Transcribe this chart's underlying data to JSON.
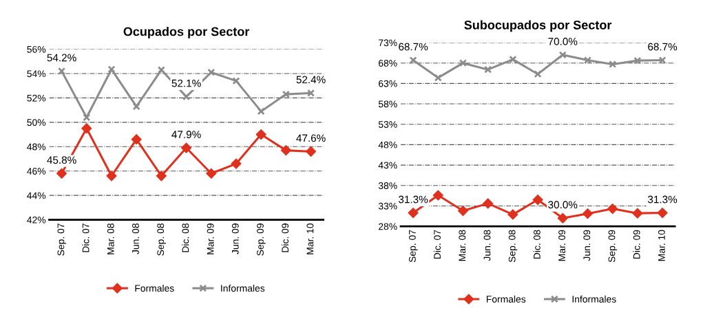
{
  "chart_data": [
    {
      "type": "line",
      "title": "Ocupados por Sector",
      "categories": [
        "Sep. 07",
        "Dic. 07",
        "Mar. 08",
        "Jun. 08",
        "Sep. 08",
        "Dic. 08",
        "Mar. 09",
        "Jun. 09",
        "Sep. 09",
        "Dic. 09",
        "Mar. 10"
      ],
      "series": [
        {
          "name": "Formales",
          "color": "#e0301e",
          "marker": "diamond",
          "values": [
            45.8,
            49.5,
            45.6,
            48.6,
            45.6,
            47.9,
            45.8,
            46.6,
            49.0,
            47.7,
            47.6
          ],
          "value_labels": [
            "45.8%",
            null,
            null,
            null,
            null,
            "47.9%",
            null,
            null,
            null,
            null,
            "47.6%"
          ]
        },
        {
          "name": "Informales",
          "color": "#8c8c8c",
          "marker": "cross",
          "values": [
            54.2,
            50.4,
            54.35,
            51.3,
            54.3,
            52.1,
            54.1,
            53.4,
            50.9,
            52.3,
            52.4
          ],
          "value_labels": [
            "54.2%",
            null,
            null,
            null,
            null,
            "52.1%",
            null,
            null,
            null,
            null,
            "52.4%"
          ]
        }
      ],
      "ylim": [
        42,
        56
      ],
      "yticks": [
        {
          "value": 42,
          "label": "42%"
        },
        {
          "value": 44,
          "label": "44%"
        },
        {
          "value": 46,
          "label": "46%"
        },
        {
          "value": 48,
          "label": "48%"
        },
        {
          "value": 50,
          "label": "50%"
        },
        {
          "value": 52,
          "label": "52%"
        },
        {
          "value": 54,
          "label": "54%"
        },
        {
          "value": 56,
          "label": "56%"
        }
      ],
      "grid": "y",
      "legend": "bottom"
    },
    {
      "type": "line",
      "title": "Subocupados por Sector",
      "categories": [
        "Sep. 07",
        "Dic. 07",
        "Mar. 08",
        "Jun. 08",
        "Sep. 08",
        "Dic. 08",
        "Mar. 09",
        "Jun. 09",
        "Sep. 09",
        "Dic. 09",
        "Mar. 10"
      ],
      "series": [
        {
          "name": "Formales",
          "color": "#e0301e",
          "marker": "diamond",
          "values": [
            31.3,
            35.6,
            31.8,
            33.6,
            30.9,
            34.5,
            30.0,
            31.1,
            32.3,
            31.2,
            31.3
          ],
          "value_labels": [
            "31.3%",
            null,
            null,
            null,
            null,
            null,
            "30.0%",
            null,
            null,
            null,
            "31.3%"
          ]
        },
        {
          "name": "Informales",
          "color": "#8c8c8c",
          "marker": "cross",
          "values": [
            68.7,
            64.4,
            68.0,
            66.4,
            68.9,
            65.3,
            70.0,
            68.7,
            67.7,
            68.6,
            68.7
          ],
          "value_labels": [
            "68.7%",
            null,
            null,
            null,
            null,
            null,
            "70.0%",
            null,
            null,
            null,
            "68.7%"
          ]
        }
      ],
      "ylim": [
        28,
        73
      ],
      "yticks": [
        {
          "value": 28,
          "label": "28%"
        },
        {
          "value": 33,
          "label": "33%"
        },
        {
          "value": 38,
          "label": "38%"
        },
        {
          "value": 43,
          "label": "43%"
        },
        {
          "value": 48,
          "label": "48%"
        },
        {
          "value": 53,
          "label": "53%"
        },
        {
          "value": 58,
          "label": "58%"
        },
        {
          "value": 63,
          "label": "63%"
        },
        {
          "value": 68,
          "label": "68%"
        },
        {
          "value": 73,
          "label": "73%"
        }
      ],
      "grid": "y",
      "legend": "bottom"
    }
  ]
}
